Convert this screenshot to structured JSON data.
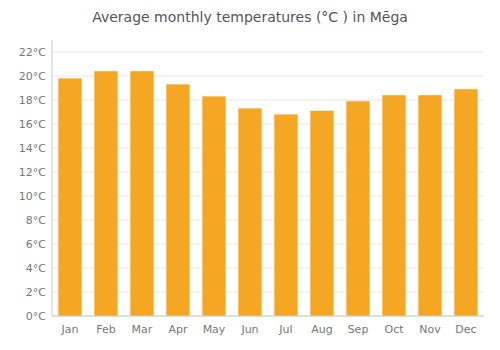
{
  "chart_data": {
    "type": "bar",
    "title": "Average monthly temperatures (°C ) in Mēga",
    "categories": [
      "Jan",
      "Feb",
      "Mar",
      "Apr",
      "May",
      "Jun",
      "Jul",
      "Aug",
      "Sep",
      "Oct",
      "Nov",
      "Dec"
    ],
    "values": [
      19.8,
      20.4,
      20.4,
      19.3,
      18.3,
      17.3,
      16.8,
      17.1,
      17.9,
      18.4,
      18.4,
      18.9
    ],
    "color": "#F5A623",
    "ylim": [
      0,
      23
    ],
    "yticks": [
      {
        "value": 0,
        "label": "0°C"
      },
      {
        "value": 2,
        "label": "2°C"
      },
      {
        "value": 4,
        "label": "4°C"
      },
      {
        "value": 6,
        "label": "6°C"
      },
      {
        "value": 8,
        "label": "8°C"
      },
      {
        "value": 10,
        "label": "10°C"
      },
      {
        "value": 12,
        "label": "12°C"
      },
      {
        "value": 14,
        "label": "14°C"
      },
      {
        "value": 16,
        "label": "16°C"
      },
      {
        "value": 18,
        "label": "18°C"
      },
      {
        "value": 20,
        "label": "20°C"
      },
      {
        "value": 22,
        "label": "22°C"
      }
    ],
    "grid": true
  }
}
